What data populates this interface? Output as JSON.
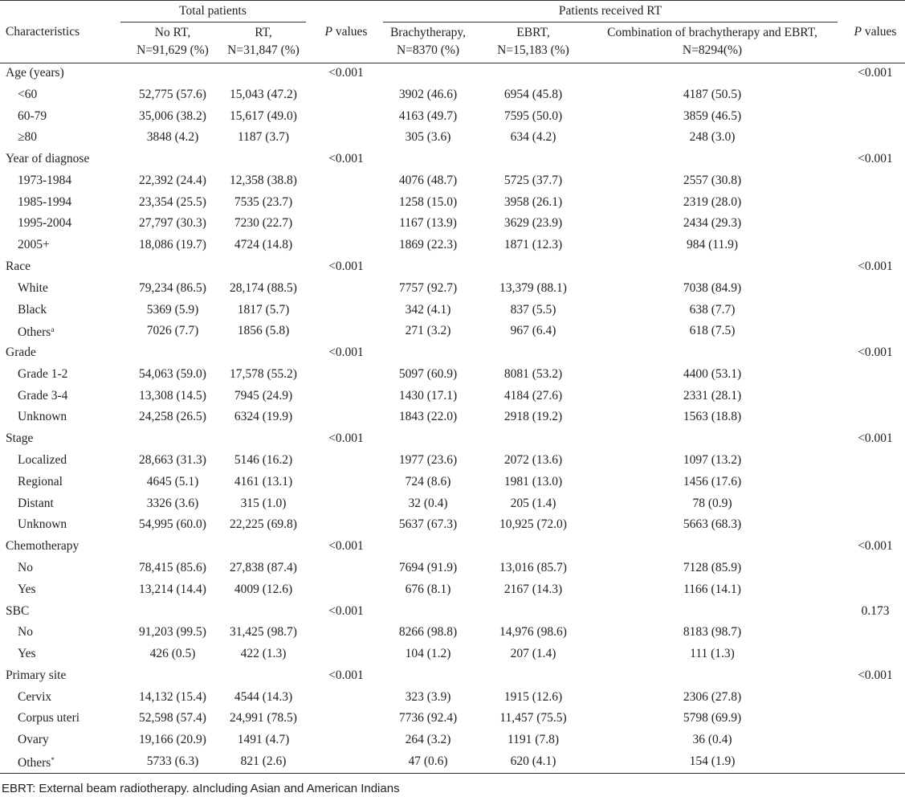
{
  "header": {
    "group_total": "Total patients",
    "group_rt": "Patients received RT",
    "p_header": {
      "italic": "P",
      "rest": " values"
    },
    "characteristics": "Characteristics",
    "columns": [
      [
        "No RT,",
        "N=91,629 (%)"
      ],
      [
        "RT,",
        "N=31,847 (%)"
      ],
      [
        "Brachytherapy,",
        "N=8370 (%)"
      ],
      [
        "EBRT,",
        "N=15,183 (%)"
      ],
      [
        "Combination of brachytherapy and EBRT,",
        "N=8294(%)"
      ]
    ]
  },
  "groups": [
    {
      "label": "Age (years)",
      "p_total": "<0.001",
      "p_rt": "<0.001",
      "rows": [
        {
          "label": "<60",
          "cells": [
            "52,775 (57.6)",
            "15,043 (47.2)",
            "3902 (46.6)",
            "6954 (45.8)",
            "4187 (50.5)"
          ]
        },
        {
          "label": "60-79",
          "cells": [
            "35,006 (38.2)",
            "15,617 (49.0)",
            "4163 (49.7)",
            "7595 (50.0)",
            "3859 (46.5)"
          ]
        },
        {
          "label": "≥80",
          "cells": [
            "3848 (4.2)",
            "1187 (3.7)",
            "305 (3.6)",
            "634 (4.2)",
            "248 (3.0)"
          ]
        }
      ]
    },
    {
      "label": "Year of diagnose",
      "p_total": "<0.001",
      "p_rt": "<0.001",
      "rows": [
        {
          "label": "1973-1984",
          "cells": [
            "22,392 (24.4)",
            "12,358 (38.8)",
            "4076 (48.7)",
            "5725 (37.7)",
            "2557 (30.8)"
          ]
        },
        {
          "label": "1985-1994",
          "cells": [
            "23,354 (25.5)",
            "7535 (23.7)",
            "1258 (15.0)",
            "3958 (26.1)",
            "2319 (28.0)"
          ]
        },
        {
          "label": "1995-2004",
          "cells": [
            "27,797 (30.3)",
            "7230 (22.7)",
            "1167 (13.9)",
            "3629 (23.9)",
            "2434 (29.3)"
          ]
        },
        {
          "label": "2005+",
          "cells": [
            "18,086 (19.7)",
            "4724 (14.8)",
            "1869 (22.3)",
            "1871 (12.3)",
            "984 (11.9)"
          ]
        }
      ]
    },
    {
      "label": "Race",
      "p_total": "<0.001",
      "p_rt": "<0.001",
      "rows": [
        {
          "label": "White",
          "cells": [
            "79,234 (86.5)",
            "28,174 (88.5)",
            "7757 (92.7)",
            "13,379 (88.1)",
            "7038 (84.9)"
          ]
        },
        {
          "label": "Black",
          "cells": [
            "5369 (5.9)",
            "1817 (5.7)",
            "342 (4.1)",
            "837 (5.5)",
            "638 (7.7)"
          ]
        },
        {
          "label": "Others",
          "sup": "a",
          "cells": [
            "7026 (7.7)",
            "1856 (5.8)",
            "271 (3.2)",
            "967 (6.4)",
            "618 (7.5)"
          ]
        }
      ]
    },
    {
      "label": "Grade",
      "p_total": "<0.001",
      "p_rt": "<0.001",
      "rows": [
        {
          "label": "Grade 1-2",
          "cells": [
            "54,063 (59.0)",
            "17,578 (55.2)",
            "5097 (60.9)",
            "8081 (53.2)",
            "4400 (53.1)"
          ]
        },
        {
          "label": "Grade 3-4",
          "cells": [
            "13,308 (14.5)",
            "7945 (24.9)",
            "1430 (17.1)",
            "4184 (27.6)",
            "2331 (28.1)"
          ]
        },
        {
          "label": "Unknown",
          "cells": [
            "24,258 (26.5)",
            "6324 (19.9)",
            "1843 (22.0)",
            "2918 (19.2)",
            "1563 (18.8)"
          ]
        }
      ]
    },
    {
      "label": "Stage",
      "p_total": "<0.001",
      "p_rt": "<0.001",
      "rows": [
        {
          "label": "Localized",
          "cells": [
            "28,663 (31.3)",
            "5146 (16.2)",
            "1977 (23.6)",
            "2072 (13.6)",
            "1097 (13.2)"
          ]
        },
        {
          "label": "Regional",
          "cells": [
            "4645 (5.1)",
            "4161 (13.1)",
            "724 (8.6)",
            "1981 (13.0)",
            "1456 (17.6)"
          ]
        },
        {
          "label": "Distant",
          "cells": [
            "3326 (3.6)",
            "315 (1.0)",
            "32 (0.4)",
            "205 (1.4)",
            "78 (0.9)"
          ]
        },
        {
          "label": "Unknown",
          "cells": [
            "54,995 (60.0)",
            "22,225 (69.8)",
            "5637 (67.3)",
            "10,925 (72.0)",
            "5663 (68.3)"
          ]
        }
      ]
    },
    {
      "label": "Chemotherapy",
      "p_total": "<0.001",
      "p_rt": "<0.001",
      "rows": [
        {
          "label": "No",
          "cells": [
            "78,415 (85.6)",
            "27,838 (87.4)",
            "7694 (91.9)",
            "13,016 (85.7)",
            "7128 (85.9)"
          ]
        },
        {
          "label": "Yes",
          "cells": [
            "13,214 (14.4)",
            "4009 (12.6)",
            "676 (8.1)",
            "2167 (14.3)",
            "1166 (14.1)"
          ]
        }
      ]
    },
    {
      "label": "SBC",
      "p_total": "<0.001",
      "p_rt": "0.173",
      "rows": [
        {
          "label": "No",
          "cells": [
            "91,203 (99.5)",
            "31,425 (98.7)",
            "8266 (98.8)",
            "14,976 (98.6)",
            "8183 (98.7)"
          ]
        },
        {
          "label": "Yes",
          "cells": [
            "426 (0.5)",
            "422 (1.3)",
            "104 (1.2)",
            "207 (1.4)",
            "111 (1.3)"
          ]
        }
      ]
    },
    {
      "label": "Primary site",
      "p_total": "<0.001",
      "p_rt": "<0.001",
      "rows": [
        {
          "label": "Cervix",
          "cells": [
            "14,132 (15.4)",
            "4544 (14.3)",
            "323 (3.9)",
            "1915 (12.6)",
            "2306 (27.8)"
          ]
        },
        {
          "label": "Corpus uteri",
          "cells": [
            "52,598 (57.4)",
            "24,991 (78.5)",
            "7736 (92.4)",
            "11,457 (75.5)",
            "5798 (69.9)"
          ]
        },
        {
          "label": "Ovary",
          "cells": [
            "19,166 (20.9)",
            "1491 (4.7)",
            "264 (3.2)",
            "1191 (7.8)",
            "36 (0.4)"
          ]
        },
        {
          "label": "Others",
          "sup": "*",
          "cells": [
            "5733 (6.3)",
            "821 (2.6)",
            "47 (0.6)",
            "620 (4.1)",
            "154 (1.9)"
          ]
        }
      ]
    }
  ],
  "footnote": "EBRT: External beam radiotherapy. aIncluding Asian and American Indians"
}
